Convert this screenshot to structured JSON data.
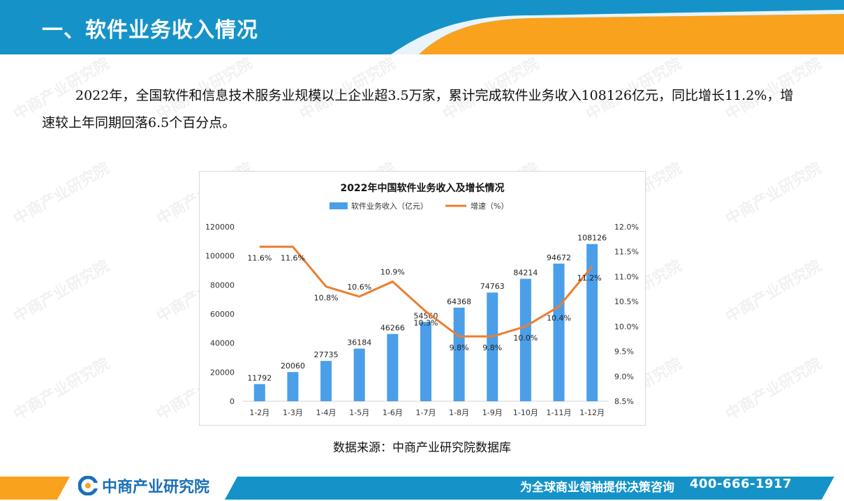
{
  "header": {
    "title": "一、软件业务收入情况",
    "colors": {
      "blue": "#1593c8",
      "orange": "#f8a21e"
    }
  },
  "intro": {
    "text": "2022年，全国软件和信息技术服务业规模以上企业超3.5万家，累计完成软件业务收入108126亿元，同比增长11.2%，增速较上年同期回落6.5个百分点。"
  },
  "watermark": {
    "text": "中商产业研究院"
  },
  "chart_data": {
    "type": "bar",
    "title": "2022年中国软件业务收入及增长情况",
    "categories": [
      "1-2月",
      "1-3月",
      "1-4月",
      "1-5月",
      "1-6月",
      "1-7月",
      "1-8月",
      "1-9月",
      "1-10月",
      "1-11月",
      "1-12月"
    ],
    "series": [
      {
        "name": "软件业务收入（亿元）",
        "type": "bar",
        "axis": "left",
        "color": "#4a9fe8",
        "values": [
          11792,
          20060,
          27735,
          36184,
          46266,
          54560,
          64368,
          74763,
          84214,
          94672,
          108126
        ]
      },
      {
        "name": "增速（%）",
        "type": "line",
        "axis": "right",
        "color": "#ed7d31",
        "values": [
          11.6,
          11.6,
          10.8,
          10.6,
          10.9,
          10.3,
          9.8,
          9.8,
          10.0,
          10.4,
          11.2
        ]
      }
    ],
    "y_left": {
      "min": 0,
      "max": 120000,
      "ticks": [
        "0",
        "20000",
        "40000",
        "60000",
        "80000",
        "100000",
        "120000"
      ]
    },
    "y_right": {
      "min": 8.5,
      "max": 12.0,
      "ticks": [
        "8.5%",
        "9.0%",
        "9.5%",
        "10.0%",
        "10.5%",
        "11.0%",
        "11.5%",
        "12.0%"
      ]
    },
    "grid": false,
    "legend": "top"
  },
  "source": {
    "text": "数据来源：中商产业研究院数据库"
  },
  "footer": {
    "brand": "中商产业研究院",
    "slogan": "为全球商业领袖提供决策咨询",
    "phone": "400-666-1917"
  }
}
